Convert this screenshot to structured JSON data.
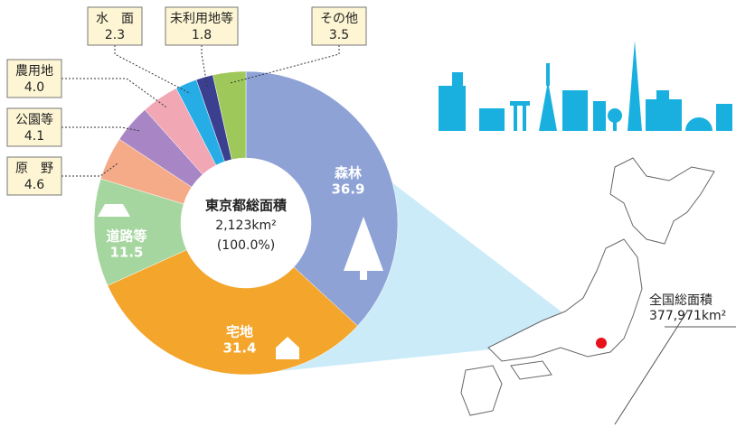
{
  "chart_data": {
    "type": "donut",
    "categories": [
      "森林",
      "宅地",
      "道路等",
      "原　野",
      "公園等",
      "農用地",
      "水　面",
      "未利用地等",
      "その他"
    ],
    "values": [
      36.9,
      31.4,
      11.5,
      4.6,
      4.1,
      4.0,
      2.3,
      1.8,
      3.5
    ],
    "value_labels": [
      "36.9",
      "31.4",
      "11.5",
      "4.6",
      "4.1",
      "4.0",
      "2.3",
      "1.8",
      "3.5"
    ],
    "colors": [
      "#8ea2d6",
      "#f3a52c",
      "#a6d6a0",
      "#f5aa88",
      "#a886c6",
      "#f2a7b5",
      "#27ade6",
      "#3b3f8f",
      "#9ec95a"
    ],
    "center_text": [
      "東京都総面積",
      "2,123km²",
      "(100.0%)"
    ],
    "map_text": [
      "全国総面積",
      "377,971km²"
    ]
  }
}
